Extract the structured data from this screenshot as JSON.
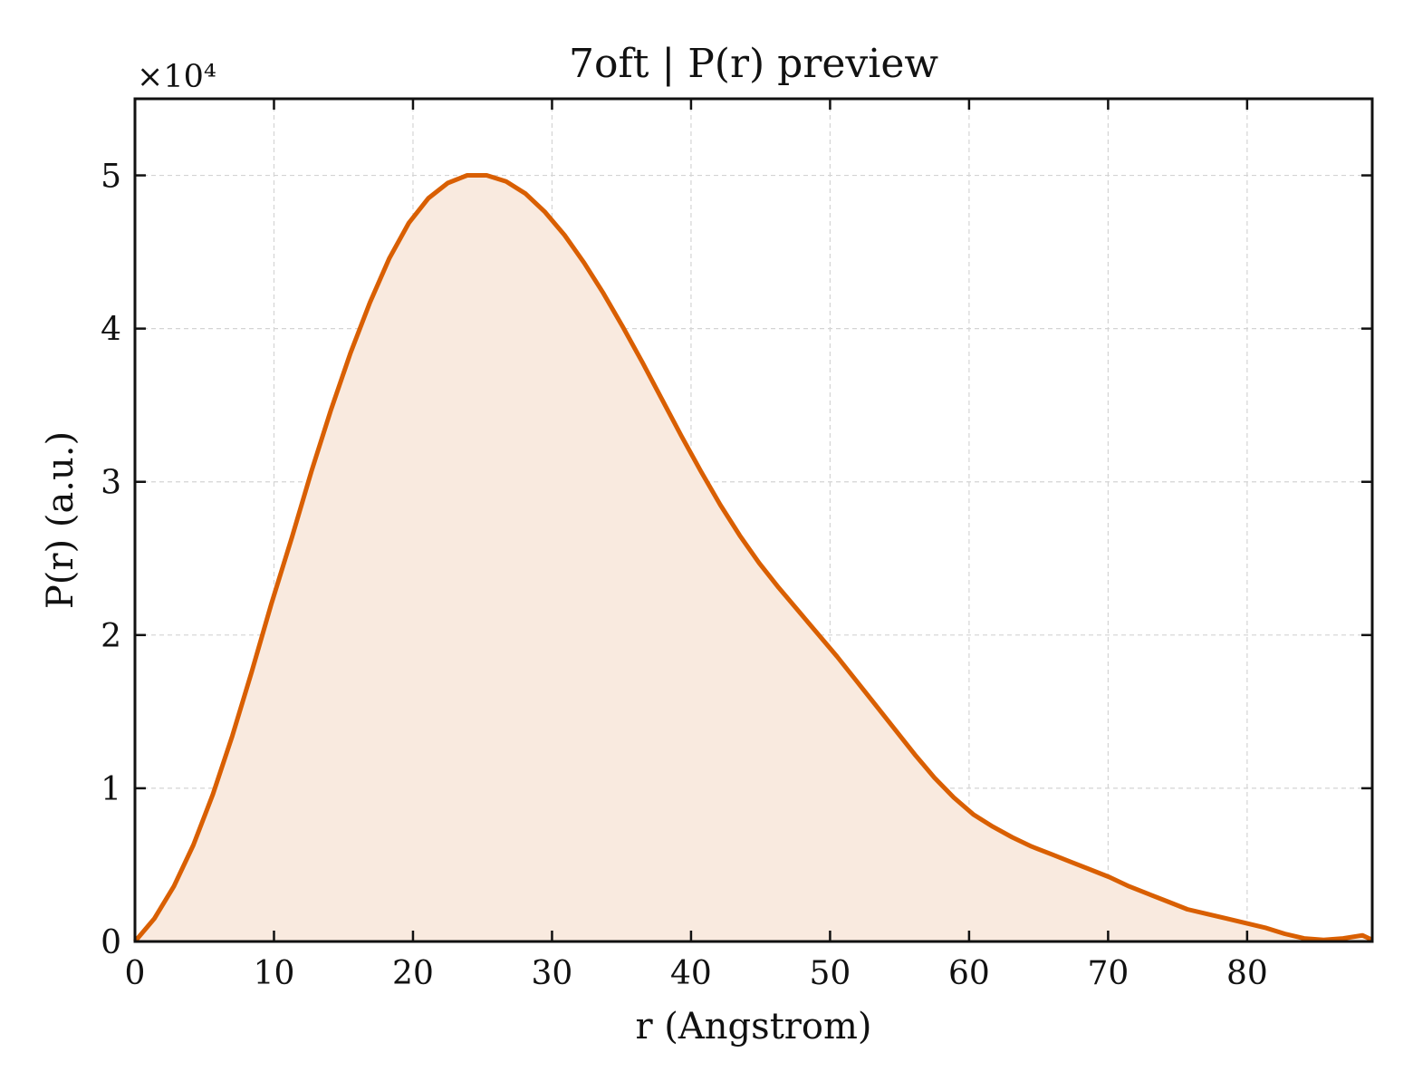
{
  "chart_data": {
    "type": "area",
    "title": "7oft | P(r) preview",
    "xlabel": "r (Angstrom)",
    "ylabel": "P(r) (a.u.)",
    "y_multiplier": "×10⁴",
    "xlim": [
      0,
      89
    ],
    "ylim": [
      0,
      55000
    ],
    "x_ticks": [
      0,
      10,
      20,
      30,
      40,
      50,
      60,
      70,
      80
    ],
    "x_tick_labels": [
      "0",
      "10",
      "20",
      "30",
      "40",
      "50",
      "60",
      "70",
      "80"
    ],
    "y_ticks": [
      0,
      10000,
      20000,
      30000,
      40000,
      50000
    ],
    "y_tick_labels": [
      "0",
      "1",
      "2",
      "3",
      "4",
      "5"
    ],
    "grid": true,
    "line_color": "#d95f02",
    "fill_color": "#f9eadf",
    "series": [
      {
        "x": [
          0,
          1.4,
          2.8,
          4.2,
          5.6,
          7.0,
          8.4,
          9.8,
          11.3,
          12.7,
          14.1,
          15.5,
          16.9,
          18.3,
          19.7,
          21.1,
          22.5,
          23.9,
          25.3,
          26.7,
          28.1,
          29.5,
          30.9,
          32.3,
          33.7,
          35.1,
          36.5,
          37.9,
          39.3,
          40.7,
          42.1,
          43.5,
          44.9,
          46.3,
          47.7,
          49.1,
          50.5,
          51.9,
          53.3,
          54.7,
          56.1,
          57.5,
          58.9,
          60.3,
          61.7,
          63.1,
          64.5,
          65.9,
          67.3,
          68.7,
          70.1,
          71.5,
          72.9,
          74.3,
          75.7,
          77.1,
          78.5,
          79.9,
          81.3,
          82.7,
          84.1,
          85.5,
          86.9,
          88.3,
          89.0
        ],
        "y": [
          0,
          1500,
          3600,
          6300,
          9600,
          13400,
          17600,
          22000,
          26400,
          30700,
          34700,
          38400,
          41700,
          44600,
          46900,
          48500,
          49500,
          50000,
          50000,
          49600,
          48800,
          47600,
          46100,
          44300,
          42300,
          40100,
          37800,
          35400,
          33000,
          30700,
          28500,
          26500,
          24700,
          23100,
          21600,
          20100,
          18600,
          17000,
          15400,
          13800,
          12200,
          10700,
          9400,
          8300,
          7500,
          6800,
          6200,
          5700,
          5200,
          4700,
          4200,
          3600,
          3100,
          2600,
          2100,
          1800,
          1500,
          1200,
          900,
          500,
          200,
          100,
          200,
          400,
          100
        ]
      }
    ]
  }
}
